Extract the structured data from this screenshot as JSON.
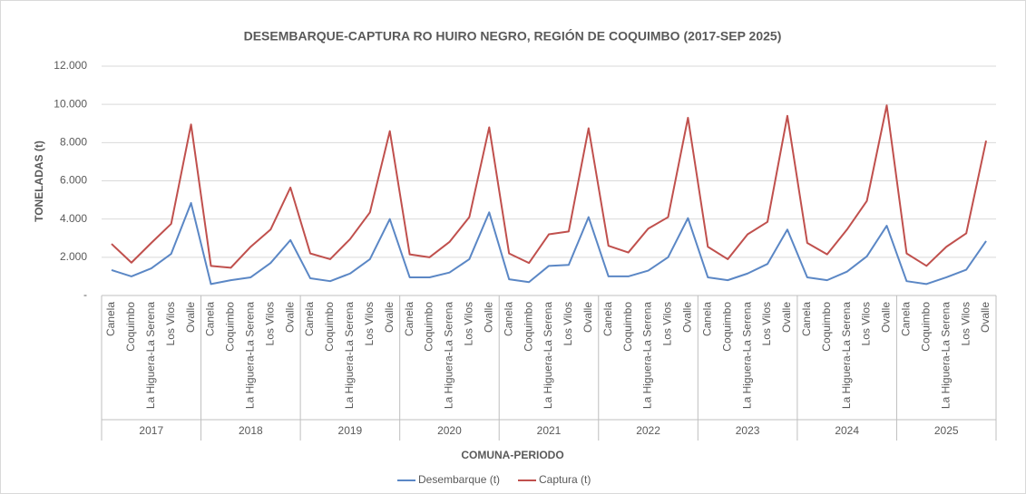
{
  "chart_data": {
    "type": "line",
    "title": "DESEMBARQUE-CAPTURA RO HUIRO NEGRO, REGIÓN DE COQUIMBO (2017-SEP 2025)",
    "x_label": "COMUNA-PERIODO",
    "y_label": "TONELADAS (t)",
    "categories": [
      "Canela",
      "Coquimbo",
      "La Higuera-La Serena",
      "Los Vilos",
      "Ovalle",
      "Canela",
      "Coquimbo",
      "La Higuera-La Serena",
      "Los Vilos",
      "Ovalle",
      "Canela",
      "Coquimbo",
      "La Higuera-La Serena",
      "Los Vilos",
      "Ovalle",
      "Canela",
      "Coquimbo",
      "La Higuera-La Serena",
      "Los Vilos",
      "Ovalle",
      "Canela",
      "Coquimbo",
      "La Higuera-La Serena",
      "Los Vilos",
      "Ovalle",
      "Canela",
      "Coquimbo",
      "La Higuera-La Serena",
      "Los Vilos",
      "Ovalle",
      "Canela",
      "Coquimbo",
      "La Higuera-La Serena",
      "Los Vilos",
      "Ovalle",
      "Canela",
      "Coquimbo",
      "La Higuera-La Serena",
      "Los Vilos",
      "Ovalle",
      "Canela",
      "Coquimbo",
      "La Higuera-La Serena",
      "Los Vilos",
      "Ovalle"
    ],
    "groups": [
      "2017",
      "2018",
      "2019",
      "2020",
      "2021",
      "2022",
      "2023",
      "2024",
      "2025"
    ],
    "series": [
      {
        "name": "Desembarque (t)",
        "color": "#5b87c5",
        "values": [
          1330,
          1000,
          1420,
          2180,
          4840,
          600,
          800,
          950,
          1700,
          2900,
          900,
          750,
          1150,
          1900,
          4000,
          950,
          950,
          1200,
          1900,
          4350,
          850,
          700,
          1550,
          1600,
          4100,
          1000,
          1000,
          1300,
          2000,
          4050,
          950,
          800,
          1150,
          1650,
          3450,
          950,
          800,
          1250,
          2050,
          3650,
          750,
          600,
          950,
          1350,
          2850
        ]
      },
      {
        "name": "Captura (t)",
        "color": "#c0504d",
        "values": [
          2700,
          1720,
          2750,
          3750,
          8950,
          1550,
          1450,
          2550,
          3450,
          5650,
          2200,
          1900,
          2950,
          4350,
          8600,
          2150,
          2000,
          2800,
          4100,
          8800,
          2200,
          1700,
          3200,
          3350,
          8750,
          2600,
          2250,
          3500,
          4100,
          9300,
          2550,
          1900,
          3200,
          3850,
          9400,
          2750,
          2150,
          3450,
          4950,
          9950,
          2200,
          1550,
          2550,
          3250,
          8100
        ]
      }
    ],
    "ylim": [
      0,
      12000
    ],
    "yticks": [
      {
        "value": 0,
        "label": "-"
      },
      {
        "value": 2000,
        "label": "2.000"
      },
      {
        "value": 4000,
        "label": "4.000"
      },
      {
        "value": 6000,
        "label": "6.000"
      },
      {
        "value": 8000,
        "label": "8.000"
      },
      {
        "value": 10000,
        "label": "10.000"
      },
      {
        "value": 12000,
        "label": "12.000"
      }
    ],
    "grid": true,
    "legend": "bottom"
  }
}
